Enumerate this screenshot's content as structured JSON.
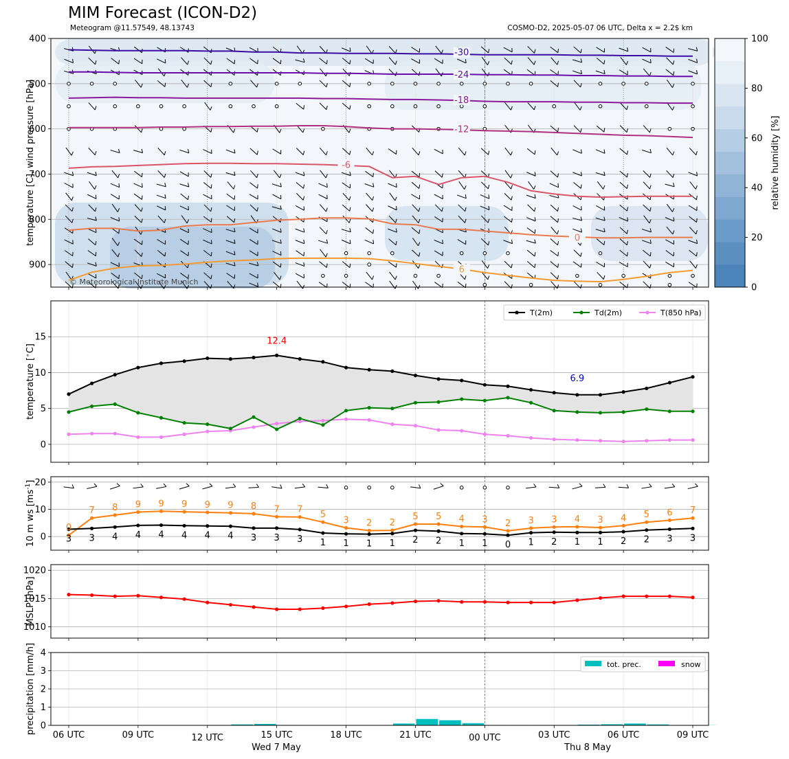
{
  "title": "MIM Forecast (ICON-D2)",
  "subtitle_left": "Meteogram @11.57549, 48.13743",
  "subtitle_right": "COSMO-D2, 2025-05-07 06 UTC, Delta x = 2.2$ km",
  "copyright": "© Meteorological Institute Munich",
  "colors": {
    "t2m": "#000000",
    "td2m": "#008000",
    "t850": "#ee82ee",
    "ws": "#ff7f0e",
    "mslp": "#ff0000",
    "prec": "#00bfbf",
    "snow": "#ff00ff",
    "max_label": "#ff0000",
    "min_label": "#0000cd"
  },
  "x_ticks": [
    "06 UTC",
    "09 UTC",
    "12 UTC",
    "15 UTC",
    "18 UTC",
    "21 UTC",
    "00 UTC",
    "03 UTC",
    "06 UTC",
    "09 UTC"
  ],
  "date_labels": [
    "Wed 7 May",
    "Thu 8 May"
  ],
  "chart_data": [
    {
      "type": "heatmap",
      "name": "upper-air",
      "ylabel": "temperature [C], wind pressure [hPa]",
      "ylim": [
        950,
        400
      ],
      "y_ticks": [
        400,
        500,
        600,
        700,
        800,
        900
      ],
      "colorbar_label": "relative humidity [%]",
      "colorbar_ticks": [
        0,
        20,
        40,
        60,
        80,
        100
      ],
      "isotherm_labels": [
        "-30",
        "-24",
        "-18",
        "-12",
        "-6",
        "0",
        "6"
      ],
      "isotherms": [
        {
          "label": "-30",
          "color": "#3a0ca3",
          "p": [
            425,
            426,
            427,
            427,
            427,
            427,
            428,
            428,
            430,
            430,
            432,
            432,
            433,
            433,
            433,
            434,
            434,
            435,
            436,
            436,
            436,
            436,
            437,
            437,
            438,
            438,
            439,
            439
          ]
        },
        {
          "label": "-24",
          "color": "#6a0dad",
          "p": [
            474,
            474,
            475,
            476,
            476,
            476,
            476,
            476,
            476,
            476,
            476,
            477,
            477,
            478,
            479,
            479,
            479,
            479,
            480,
            480,
            481,
            481,
            482,
            482,
            483,
            483,
            484,
            484
          ]
        },
        {
          "label": "-18",
          "color": "#8b1a9a",
          "p": [
            532,
            531,
            530,
            531,
            531,
            532,
            532,
            532,
            532,
            532,
            532,
            533,
            533,
            534,
            535,
            535,
            536,
            537,
            539,
            540,
            540,
            540,
            541,
            541,
            542,
            542,
            543,
            543
          ]
        },
        {
          "label": "-12",
          "color": "#b03080",
          "p": [
            597,
            597,
            597,
            597,
            596,
            596,
            595,
            595,
            594,
            594,
            593,
            593,
            595,
            598,
            600,
            600,
            601,
            602,
            604,
            605,
            606,
            608,
            610,
            612,
            614,
            615,
            617,
            619
          ]
        },
        {
          "label": "-6",
          "color": "#d9556a",
          "p": [
            687,
            684,
            683,
            681,
            679,
            677,
            676,
            676,
            677,
            677,
            678,
            679,
            681,
            683,
            708,
            705,
            723,
            708,
            705,
            718,
            737,
            744,
            749,
            751,
            750,
            749,
            749,
            749
          ]
        },
        {
          "label": "0",
          "color": "#ea7a4e",
          "p": [
            824,
            820,
            820,
            826,
            824,
            815,
            812,
            812,
            807,
            802,
            800,
            797,
            797,
            799,
            810,
            812,
            822,
            822,
            826,
            830,
            834,
            837,
            839,
            841,
            841,
            840,
            840,
            840
          ]
        },
        {
          "label": "6",
          "color": "#f59a30",
          "p": [
            935,
            917,
            908,
            903,
            902,
            899,
            895,
            892,
            890,
            887,
            886,
            886,
            886,
            887,
            892,
            898,
            904,
            910,
            918,
            924,
            930,
            935,
            937,
            938,
            933,
            926,
            918,
            913
          ]
        }
      ]
    },
    {
      "type": "line",
      "name": "temperature",
      "ylabel": "temperature [$^\\circ$C]",
      "ylim": [
        -2.5,
        20
      ],
      "y_ticks": [
        0,
        5,
        10,
        15
      ],
      "max_label": "12.4",
      "min_label": "6.9",
      "x": [
        "06 UTC",
        "07 UTC",
        "08 UTC",
        "09 UTC",
        "10 UTC",
        "11 UTC",
        "12 UTC",
        "13 UTC",
        "14 UTC",
        "15 UTC",
        "16 UTC",
        "17 UTC",
        "18 UTC",
        "19 UTC",
        "20 UTC",
        "21 UTC",
        "22 UTC",
        "23 UTC",
        "00 UTC",
        "01 UTC",
        "02 UTC",
        "03 UTC",
        "04 UTC",
        "05 UTC",
        "06 UTC",
        "07 UTC",
        "08 UTC",
        "09 UTC"
      ],
      "series": [
        {
          "name": "T(2m)",
          "values": [
            7.0,
            8.5,
            9.7,
            10.7,
            11.3,
            11.6,
            12.0,
            11.9,
            12.1,
            12.4,
            11.9,
            11.5,
            10.7,
            10.4,
            10.2,
            9.6,
            9.1,
            8.9,
            8.3,
            8.1,
            7.6,
            7.2,
            6.9,
            6.9,
            7.3,
            7.8,
            8.6,
            9.4
          ]
        },
        {
          "name": "Td(2m)",
          "values": [
            4.5,
            5.3,
            5.6,
            4.4,
            3.7,
            3.0,
            2.8,
            2.2,
            3.8,
            2.1,
            3.6,
            2.7,
            4.7,
            5.1,
            5.0,
            5.8,
            5.9,
            6.3,
            6.1,
            6.5,
            5.8,
            4.7,
            4.5,
            4.4,
            4.5,
            4.9,
            4.6,
            4.6
          ]
        },
        {
          "name": "T(850 hPa)",
          "values": [
            1.4,
            1.5,
            1.5,
            1.0,
            1.0,
            1.4,
            1.8,
            1.9,
            2.4,
            2.9,
            3.2,
            3.3,
            3.5,
            3.4,
            2.8,
            2.6,
            2.0,
            1.9,
            1.4,
            1.2,
            0.9,
            0.7,
            0.6,
            0.5,
            0.4,
            0.5,
            0.6,
            0.6
          ]
        }
      ]
    },
    {
      "type": "line",
      "name": "wind",
      "ylabel": "10 m ws [ms$^{-1}$]",
      "ylim": [
        -5,
        22
      ],
      "y_ticks": [
        0,
        10,
        20
      ],
      "series": [
        {
          "name": "gust",
          "values": [
            0,
            7,
            8,
            9,
            9,
            9,
            9,
            9,
            8,
            7,
            7,
            5,
            3,
            2,
            2,
            5,
            5,
            4,
            3,
            2,
            3,
            3,
            4,
            3,
            4,
            5,
            6,
            7
          ],
          "plot": [
            0.5,
            6.8,
            7.9,
            9.0,
            9.3,
            9.1,
            8.9,
            8.7,
            8.4,
            7.3,
            7.2,
            5.3,
            3.2,
            2.2,
            2.3,
            4.6,
            4.6,
            3.7,
            3.5,
            2.1,
            3.1,
            3.5,
            3.6,
            3.3,
            4.0,
            5.3,
            6.0,
            6.8
          ]
        },
        {
          "name": "ws",
          "values": [
            3,
            3,
            4,
            4,
            4,
            4,
            4,
            4,
            3,
            3,
            3,
            1,
            1,
            1,
            1,
            2,
            2,
            1,
            1,
            0,
            1,
            2,
            1,
            1,
            2,
            2,
            3,
            3
          ],
          "plot": [
            2.7,
            3.0,
            3.5,
            4.1,
            4.2,
            4.0,
            3.9,
            3.8,
            3.1,
            3.1,
            2.6,
            1.3,
            1.0,
            0.9,
            1.1,
            2.3,
            2.0,
            1.1,
            1.0,
            0.5,
            1.4,
            1.6,
            1.5,
            1.5,
            1.8,
            2.4,
            2.7,
            3.0
          ]
        }
      ]
    },
    {
      "type": "line",
      "name": "pressure",
      "ylabel": "MSLP [hPa]",
      "ylim": [
        1008,
        1021
      ],
      "y_ticks": [
        1010,
        1015,
        1020
      ],
      "series": [
        {
          "name": "MSLP",
          "values": [
            1015.7,
            1015.6,
            1015.4,
            1015.5,
            1015.2,
            1014.9,
            1014.3,
            1013.9,
            1013.5,
            1013.1,
            1013.1,
            1013.3,
            1013.6,
            1014.0,
            1014.2,
            1014.5,
            1014.6,
            1014.4,
            1014.4,
            1014.3,
            1014.3,
            1014.3,
            1014.7,
            1015.1,
            1015.4,
            1015.4,
            1015.4,
            1015.2
          ]
        }
      ]
    },
    {
      "type": "bar",
      "name": "precipitation",
      "ylabel": "precipitation [mm/h]",
      "ylim": [
        0,
        4
      ],
      "y_ticks": [
        0,
        1,
        2,
        3,
        4
      ],
      "series": [
        {
          "name": "tot. prec.",
          "values": [
            0,
            0,
            0,
            0,
            0,
            0,
            0.02,
            0.05,
            0.08,
            0.02,
            0,
            0,
            0,
            0,
            0.1,
            0.35,
            0.28,
            0.12,
            0.02,
            0.02,
            0.02,
            0.02,
            0.04,
            0.06,
            0.1,
            0.05,
            0.02,
            0.01
          ]
        },
        {
          "name": "snow",
          "values": [
            0,
            0,
            0,
            0,
            0,
            0,
            0,
            0,
            0,
            0,
            0,
            0,
            0,
            0,
            0,
            0,
            0,
            0,
            0,
            0,
            0,
            0,
            0,
            0,
            0,
            0,
            0,
            0
          ]
        }
      ]
    }
  ]
}
